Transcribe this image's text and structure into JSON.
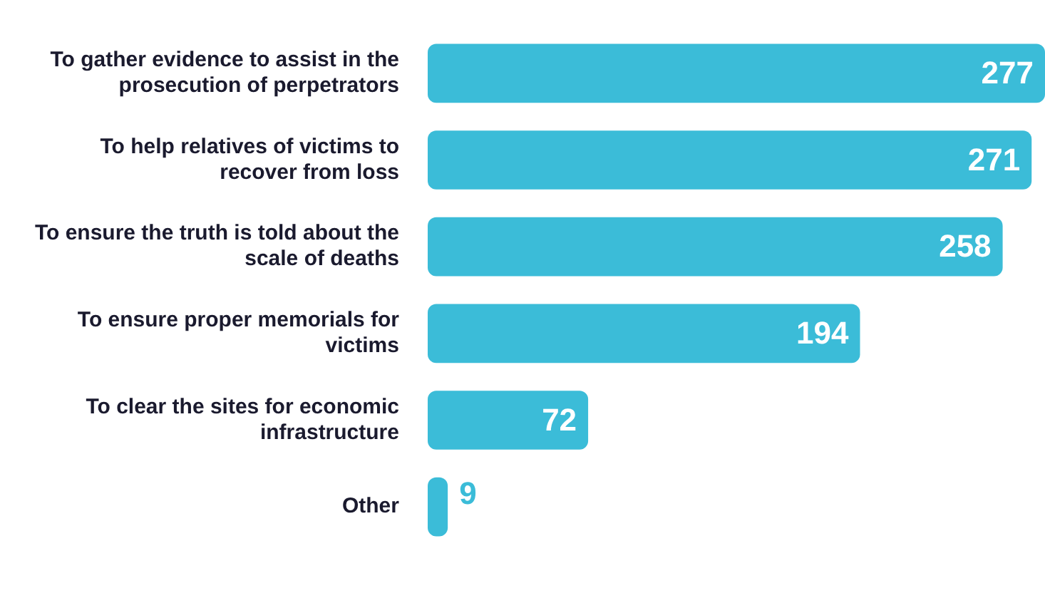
{
  "chart_data": {
    "type": "bar",
    "orientation": "horizontal",
    "categories": [
      "To gather evidence to assist in the prosecution of perpetrators",
      "To help relatives of victims to recover from loss",
      "To ensure the truth is told about the scale of deaths",
      "To ensure proper memorials for victims",
      "To clear the sites for economic infrastructure",
      "Other"
    ],
    "values": [
      277,
      271,
      258,
      194,
      72,
      9
    ],
    "color": "#3bbcd8",
    "data_labels": true
  }
}
